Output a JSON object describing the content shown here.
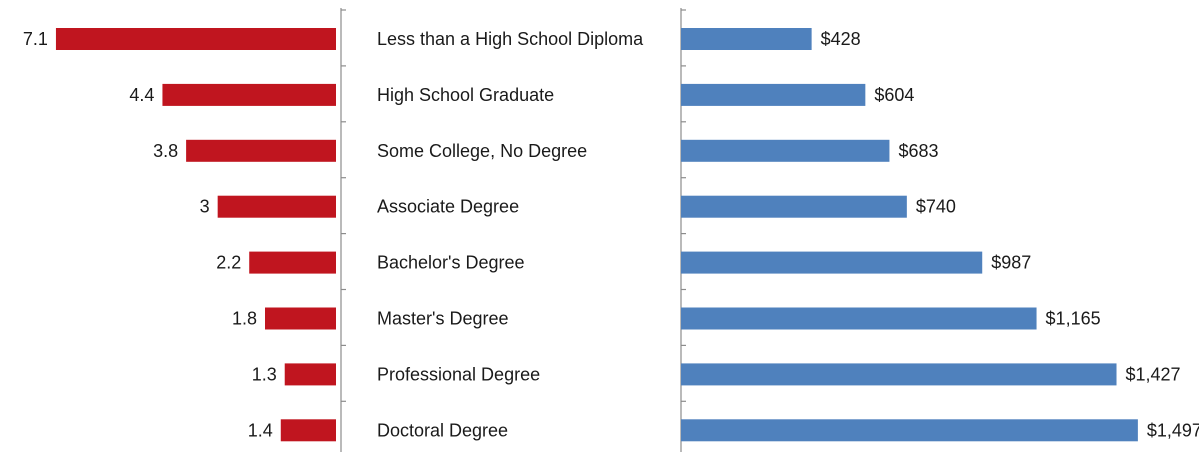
{
  "chart_data": {
    "type": "bar",
    "categories": [
      "Less than a High School Diploma",
      "High School Graduate",
      "Some College, No Degree",
      "Associate Degree",
      "Bachelor's Degree",
      "Master's Degree",
      "Professional Degree",
      "Doctoral Degree"
    ],
    "series": [
      {
        "values": [
          7.1,
          4.4,
          3.8,
          3,
          2.2,
          1.8,
          1.3,
          1.4
        ],
        "labels": [
          "7.1",
          "4.4",
          "3.8",
          "3",
          "2.2",
          "1.8",
          "1.3",
          "1.4"
        ],
        "color": "#c0151f",
        "orientation": "extends left from the central axis"
      },
      {
        "values": [
          428,
          604,
          683,
          740,
          987,
          1165,
          1427,
          1497
        ],
        "labels": [
          "$428",
          "$604",
          "$683",
          "$740",
          "$987",
          "$1,165",
          "$1,427",
          "$1,497"
        ],
        "color": "#4f81bd",
        "orientation": "extends right from its axis"
      }
    ],
    "title": "",
    "xlabel": "",
    "ylabel": "",
    "grid": false,
    "legend": "none",
    "xlim_left": [
      0,
      7.2
    ],
    "xlim_right": [
      0,
      1540
    ]
  }
}
